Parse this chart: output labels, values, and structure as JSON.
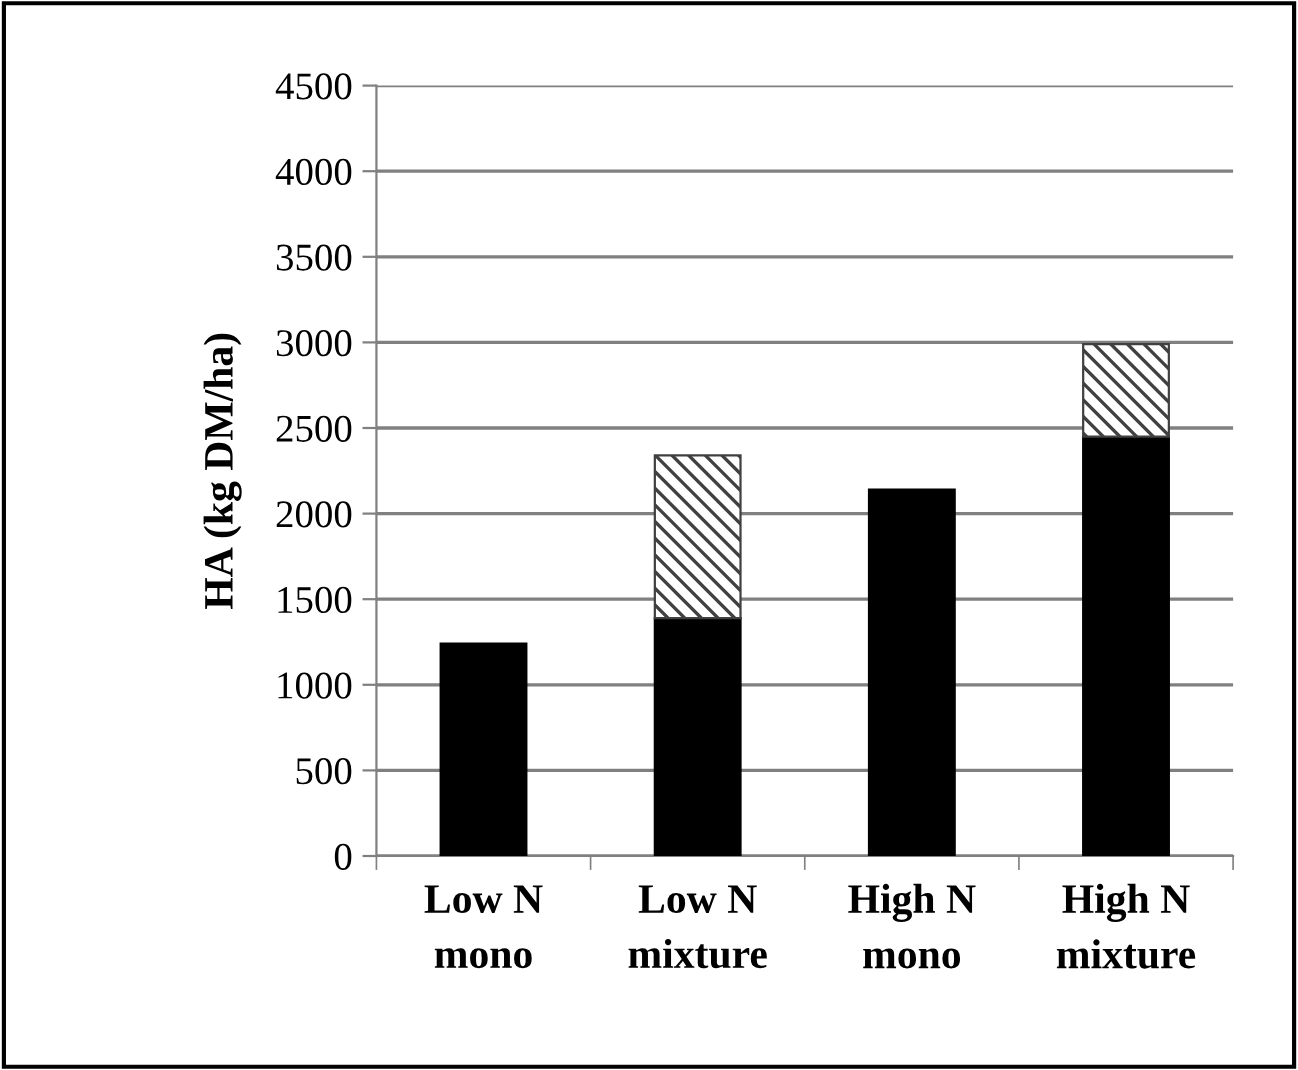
{
  "chart_data": {
    "type": "bar",
    "stacked": true,
    "ylabel": "HA (kg DM/ha)",
    "categories": [
      "Low N\nmono",
      "Low N\nmixture",
      "High N\nmono",
      "High N\nmixture"
    ],
    "series": [
      {
        "color": "#000000",
        "values": [
          1240,
          1390,
          2140,
          2450
        ]
      },
      {
        "color": "#404040",
        "values": [
          null,
          950,
          null,
          540
        ]
      }
    ],
    "ylim": [
      0,
      4500
    ],
    "yticks": [
      0,
      500,
      1000,
      1500,
      2000,
      2500,
      3000,
      3500,
      4000,
      4500
    ],
    "grid": "y",
    "legend": false
  }
}
